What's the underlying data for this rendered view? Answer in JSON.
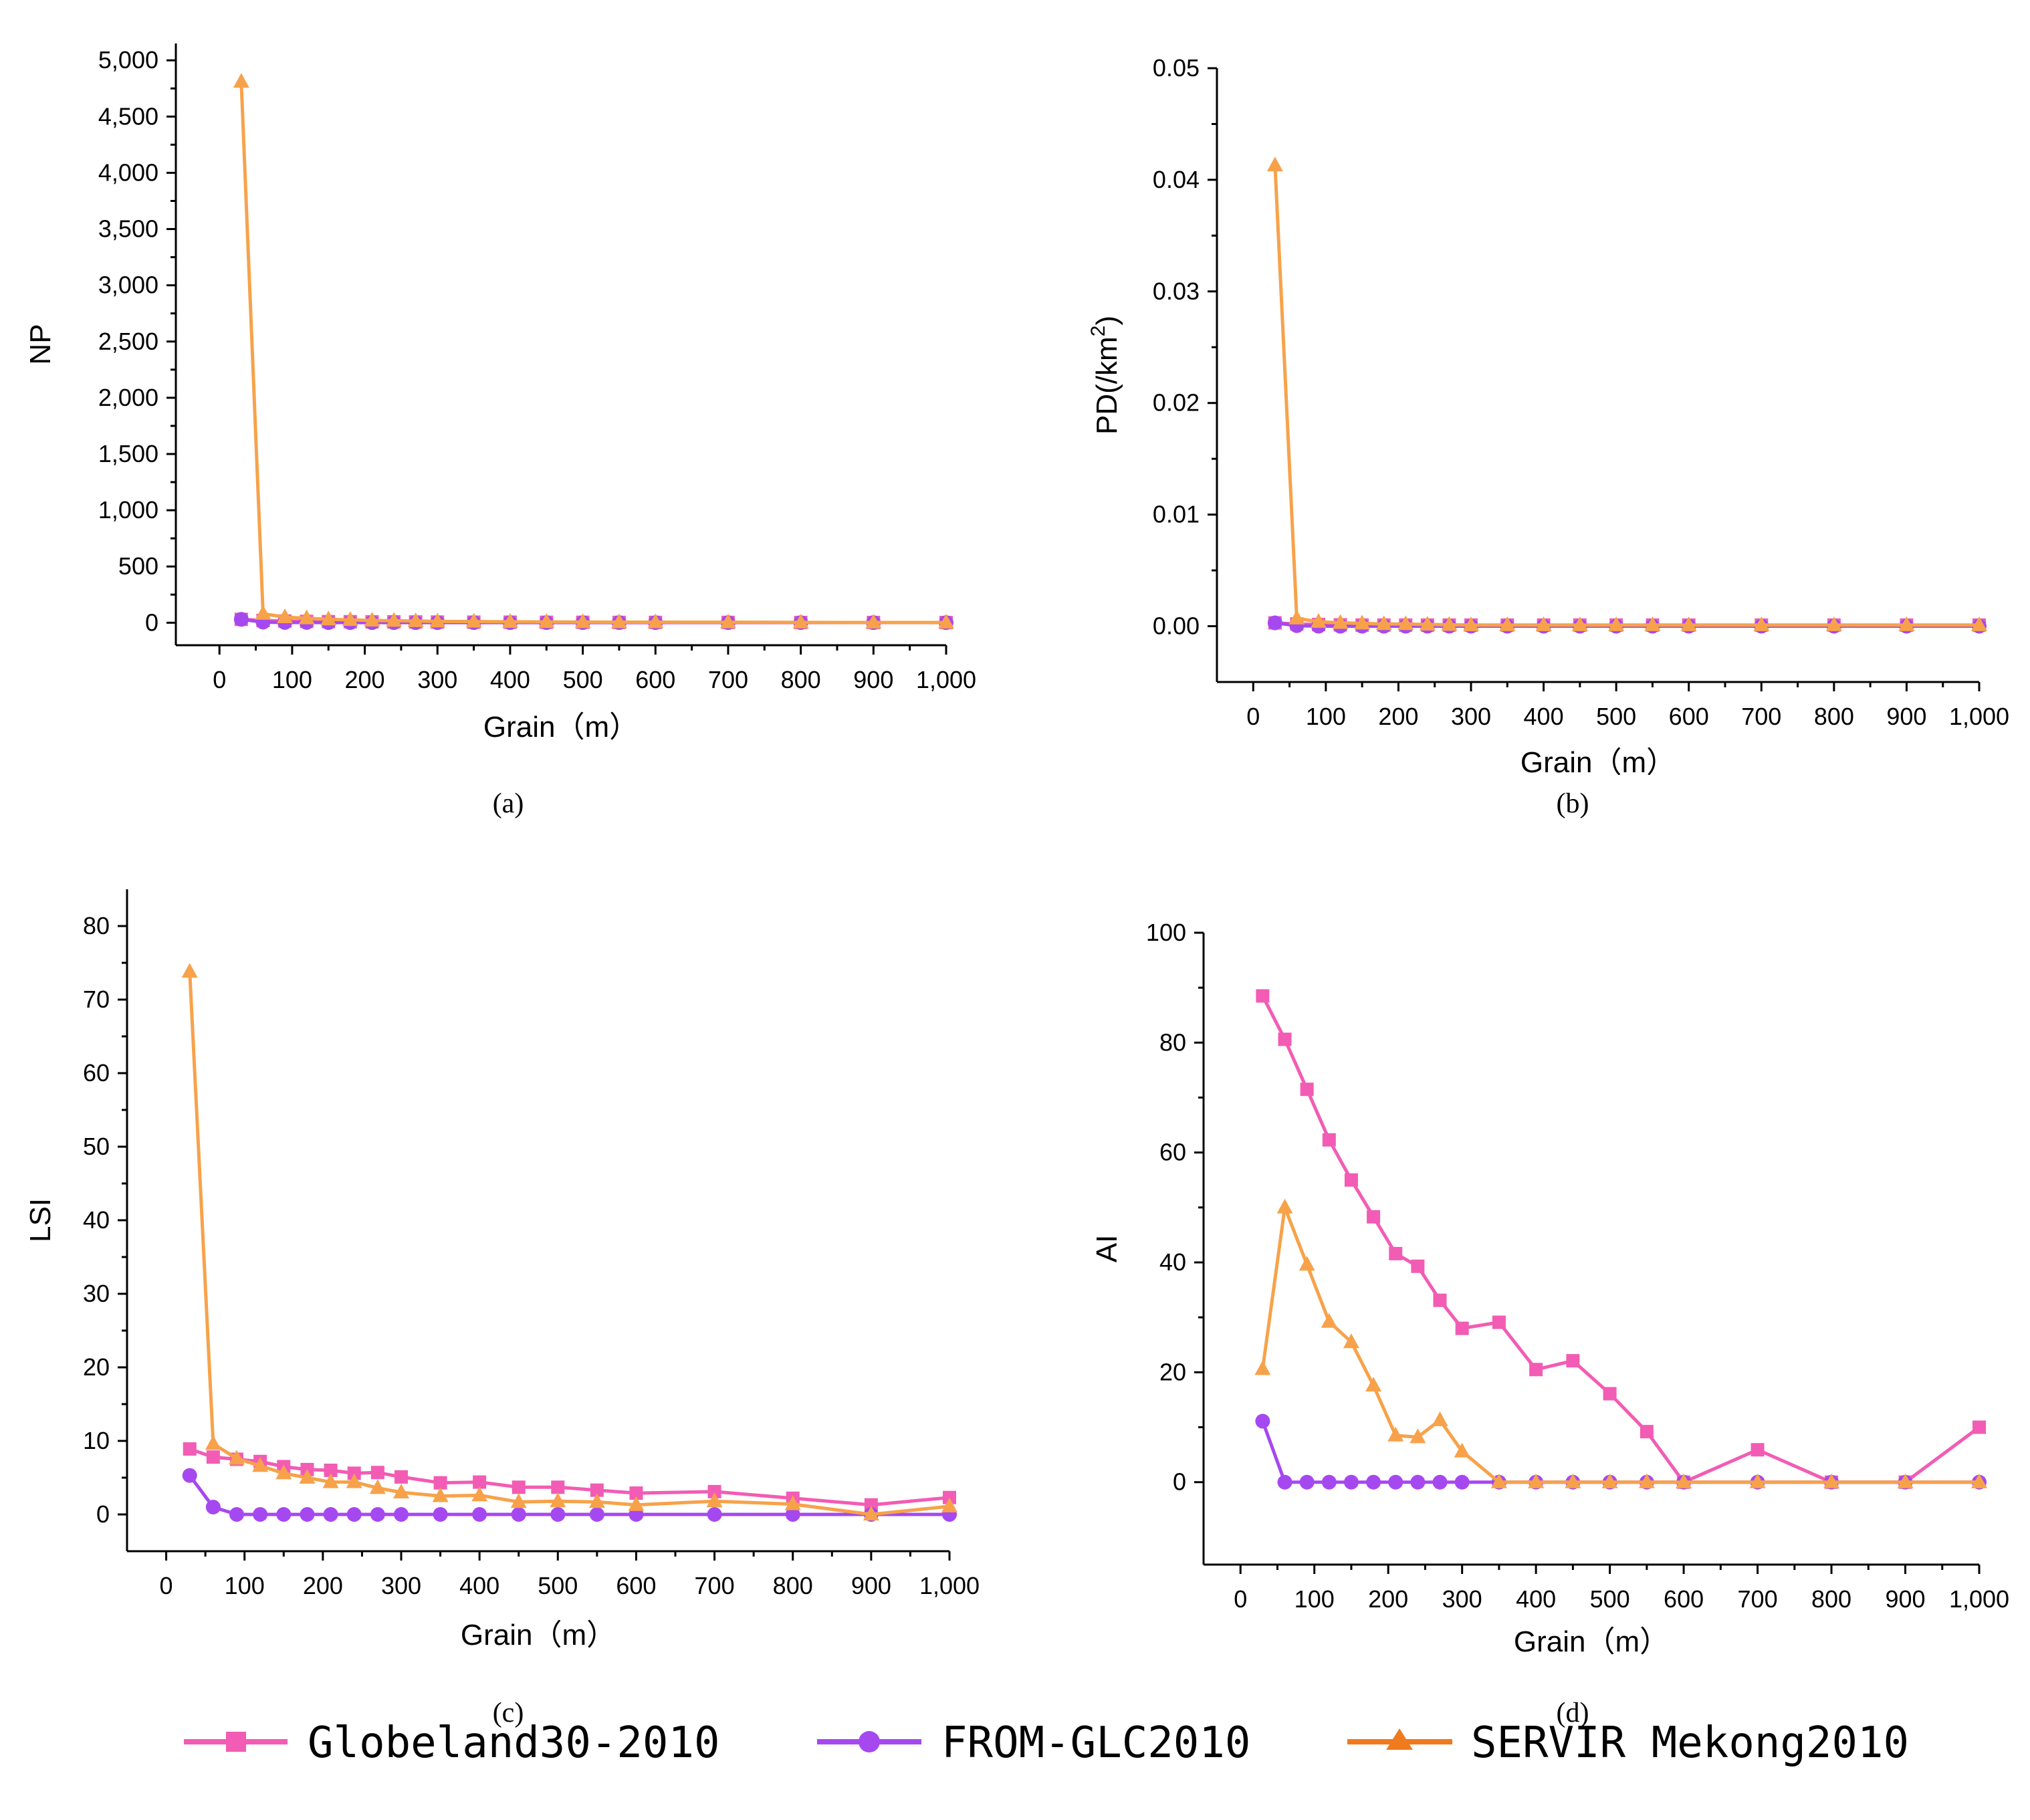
{
  "colors": {
    "globeland": "#f25cb4",
    "fromglc": "#a648f0",
    "servir": "#f7a24a",
    "legend_servir": "#f07a1e"
  },
  "legend": [
    {
      "name": "Globeland30-2010",
      "marker": "square",
      "color_key": "globeland"
    },
    {
      "name": "FROM-GLC2010",
      "marker": "circle",
      "color_key": "fromglc"
    },
    {
      "name": "SERVIR Mekong2010",
      "marker": "triangle",
      "color_key": "legend_servir"
    }
  ],
  "chart_data": [
    {
      "type": "line",
      "caption": "(a)",
      "xlabel": "Grain（m）",
      "ylabel": "NP",
      "xlim": [
        -60,
        1000
      ],
      "ylim": [
        -200,
        5150
      ],
      "xticks": [
        0,
        100,
        200,
        300,
        400,
        500,
        600,
        700,
        800,
        900,
        1000
      ],
      "xtick_labels": [
        "0",
        "100",
        "200",
        "300",
        "400",
        "500",
        "600",
        "700",
        "800",
        "900",
        "1,000"
      ],
      "yticks": [
        0,
        500,
        1000,
        1500,
        2000,
        2500,
        3000,
        3500,
        4000,
        4500,
        5000
      ],
      "ytick_labels": [
        "0",
        "500",
        "1,000",
        "1,500",
        "2,000",
        "2,500",
        "3,000",
        "3,500",
        "4,000",
        "4,500",
        "5,000"
      ],
      "x": [
        30,
        60,
        90,
        120,
        150,
        180,
        210,
        240,
        270,
        300,
        350,
        400,
        450,
        500,
        550,
        600,
        700,
        800,
        900,
        1000
      ],
      "series": [
        {
          "name": "Globeland30-2010",
          "color_key": "globeland",
          "marker": "square",
          "values": [
            30,
            20,
            15,
            12,
            10,
            9,
            8,
            8,
            7,
            6,
            5,
            5,
            4,
            4,
            3,
            3,
            3,
            2,
            2,
            2
          ]
        },
        {
          "name": "FROM-GLC2010",
          "color_key": "fromglc",
          "marker": "circle",
          "values": [
            30,
            5,
            2,
            2,
            1,
            1,
            1,
            1,
            1,
            1,
            1,
            1,
            1,
            1,
            1,
            1,
            1,
            1,
            1,
            1
          ]
        },
        {
          "name": "SERVIR Mekong2010",
          "color_key": "servir",
          "marker": "triangle",
          "values": [
            4810,
            80,
            50,
            40,
            30,
            25,
            20,
            18,
            15,
            12,
            10,
            8,
            7,
            6,
            5,
            5,
            4,
            3,
            2,
            2
          ]
        }
      ]
    },
    {
      "type": "line",
      "caption": "(b)",
      "xlabel": "Grain（m）",
      "ylabel_main": "PD(/km",
      "ylabel_sup": "2",
      "ylabel_end": ")",
      "xlim": [
        -50,
        1000
      ],
      "ylim": [
        -0.005,
        0.05
      ],
      "xticks": [
        0,
        100,
        200,
        300,
        400,
        500,
        600,
        700,
        800,
        900,
        1000
      ],
      "xtick_labels": [
        "0",
        "100",
        "200",
        "300",
        "400",
        "500",
        "600",
        "700",
        "800",
        "900",
        "1,000"
      ],
      "yticks": [
        0,
        0.01,
        0.02,
        0.03,
        0.04,
        0.05
      ],
      "ytick_labels": [
        "0.00",
        "0.01",
        "0.02",
        "0.03",
        "0.04",
        "0.05"
      ],
      "x": [
        30,
        60,
        90,
        120,
        150,
        180,
        210,
        240,
        270,
        300,
        350,
        400,
        450,
        500,
        550,
        600,
        700,
        800,
        900,
        1000
      ],
      "series": [
        {
          "name": "Globeland30-2010",
          "color_key": "globeland",
          "marker": "square",
          "values": [
            0.0003,
            0.0002,
            0.00015,
            0.00012,
            0.0001,
            0.0001,
            0.0001,
            0.0001,
            0.0001,
            0.0001,
            0.0001,
            0.0001,
            0.0001,
            0.0001,
            0.0001,
            0.0001,
            0.0001,
            0.0001,
            0.0001,
            0.0001
          ]
        },
        {
          "name": "FROM-GLC2010",
          "color_key": "fromglc",
          "marker": "circle",
          "values": [
            0.0003,
            5e-05,
            0,
            0,
            0,
            0,
            0,
            0,
            0,
            0,
            0,
            0,
            0,
            0,
            0,
            0,
            0,
            0,
            0,
            0
          ]
        },
        {
          "name": "SERVIR Mekong2010",
          "color_key": "servir",
          "marker": "triangle",
          "values": [
            0.0413,
            0.0007,
            0.0004,
            0.0003,
            0.00025,
            0.0002,
            0.0002,
            0.00015,
            0.00013,
            0.0001,
            0.0001,
            0.0001,
            0.0001,
            0.0001,
            0.0001,
            0.0001,
            0.0001,
            0.0001,
            0.0001,
            0.0001
          ]
        }
      ]
    },
    {
      "type": "line",
      "caption": "(c)",
      "xlabel": "Grain（m）",
      "ylabel": "LSI",
      "xlim": [
        -50,
        1000
      ],
      "ylim": [
        -5,
        85
      ],
      "xticks": [
        0,
        100,
        200,
        300,
        400,
        500,
        600,
        700,
        800,
        900,
        1000
      ],
      "xtick_labels": [
        "0",
        "100",
        "200",
        "300",
        "400",
        "500",
        "600",
        "700",
        "800",
        "900",
        "1,000"
      ],
      "yticks": [
        0,
        10,
        20,
        30,
        40,
        50,
        60,
        70,
        80
      ],
      "ytick_labels": [
        "0",
        "10",
        "20",
        "30",
        "40",
        "50",
        "60",
        "70",
        "80"
      ],
      "x": [
        30,
        60,
        90,
        120,
        150,
        180,
        210,
        240,
        270,
        300,
        350,
        400,
        450,
        500,
        550,
        600,
        700,
        800,
        900,
        1000
      ],
      "series": [
        {
          "name": "Globeland30-2010",
          "color_key": "globeland",
          "marker": "square",
          "values": [
            8.9,
            7.8,
            7.5,
            7.2,
            6.5,
            6.1,
            6.0,
            5.6,
            5.7,
            5.1,
            4.3,
            4.4,
            3.7,
            3.7,
            3.3,
            2.9,
            3.1,
            2.2,
            1.3,
            2.3
          ]
        },
        {
          "name": "FROM-GLC2010",
          "color_key": "fromglc",
          "marker": "circle",
          "values": [
            5.3,
            1.0,
            0,
            0,
            0,
            0,
            0,
            0,
            0,
            0,
            0,
            0,
            0,
            0,
            0,
            0,
            0,
            0,
            0,
            0
          ]
        },
        {
          "name": "SERVIR Mekong2010",
          "color_key": "servir",
          "marker": "triangle",
          "values": [
            73.8,
            9.6,
            7.6,
            6.6,
            5.6,
            5.0,
            4.4,
            4.4,
            3.6,
            3.0,
            2.5,
            2.6,
            1.7,
            1.8,
            1.7,
            1.3,
            1.8,
            1.4,
            0,
            1.1
          ]
        }
      ]
    },
    {
      "type": "line",
      "caption": "(d)",
      "xlabel": "Grain（m）",
      "ylabel": "AI",
      "xlim": [
        -50,
        1000
      ],
      "ylim": [
        -15,
        100
      ],
      "xticks": [
        0,
        100,
        200,
        300,
        400,
        500,
        600,
        700,
        800,
        900,
        1000
      ],
      "xtick_labels": [
        "0",
        "100",
        "200",
        "300",
        "400",
        "500",
        "600",
        "700",
        "800",
        "900",
        "1,000"
      ],
      "yticks": [
        0,
        20,
        40,
        60,
        80,
        100
      ],
      "ytick_labels": [
        "0",
        "20",
        "40",
        "60",
        "80",
        "100"
      ],
      "x": [
        30,
        60,
        90,
        120,
        150,
        180,
        210,
        240,
        270,
        300,
        350,
        400,
        450,
        500,
        550,
        600,
        700,
        800,
        900,
        1000
      ],
      "series": [
        {
          "name": "Globeland30-2010",
          "color_key": "globeland",
          "marker": "square",
          "values": [
            88.5,
            80.6,
            71.5,
            62.3,
            55.0,
            48.3,
            41.6,
            39.3,
            33.1,
            28.0,
            29.1,
            20.5,
            22.1,
            16.1,
            9.2,
            0,
            5.9,
            0,
            0,
            10.0
          ]
        },
        {
          "name": "FROM-GLC2010",
          "color_key": "fromglc",
          "marker": "circle",
          "values": [
            11.1,
            0,
            0,
            0,
            0,
            0,
            0,
            0,
            0,
            0,
            0,
            0,
            0,
            0,
            0,
            0,
            0,
            0,
            0,
            0
          ]
        },
        {
          "name": "SERVIR Mekong2010",
          "color_key": "servir",
          "marker": "triangle",
          "values": [
            20.6,
            50.0,
            39.6,
            29.2,
            25.5,
            17.6,
            8.5,
            8.2,
            11.3,
            5.6,
            0,
            0,
            0,
            0,
            0,
            0,
            0,
            0,
            0,
            0
          ]
        }
      ]
    }
  ]
}
